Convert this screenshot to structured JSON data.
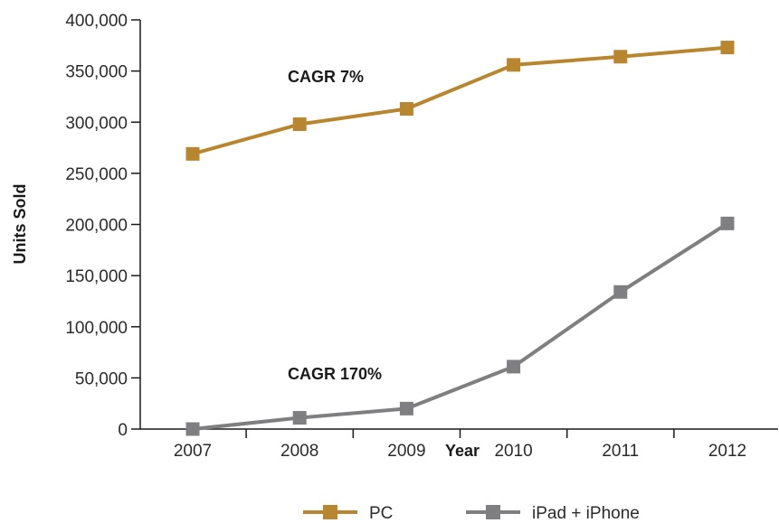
{
  "chart_data": {
    "type": "line",
    "title": "",
    "xlabel": "Year",
    "ylabel": "Units Sold",
    "x": [
      "2007",
      "2008",
      "2009",
      "2010",
      "2011",
      "2012"
    ],
    "ylim": [
      0,
      400000
    ],
    "yticks": [
      0,
      50000,
      100000,
      150000,
      200000,
      250000,
      300000,
      350000,
      400000
    ],
    "ytick_labels": [
      "0",
      "50,000",
      "100,000",
      "150,000",
      "200,000",
      "250,000",
      "300,000",
      "350,000",
      "400,000"
    ],
    "grid": false,
    "legend_position": "bottom",
    "series": [
      {
        "name": "PC",
        "color": "#b8862f",
        "marker": "square",
        "values": [
          269000,
          298000,
          313000,
          356000,
          364000,
          373000
        ]
      },
      {
        "name": "iPad + iPhone",
        "color": "#7f7f81",
        "marker": "square",
        "values": [
          0,
          11000,
          20000,
          61000,
          134000,
          201000
        ]
      }
    ],
    "annotations": [
      {
        "text": "CAGR 7%",
        "series": "PC"
      },
      {
        "text": "CAGR 170%",
        "series": "iPad + iPhone"
      }
    ]
  }
}
